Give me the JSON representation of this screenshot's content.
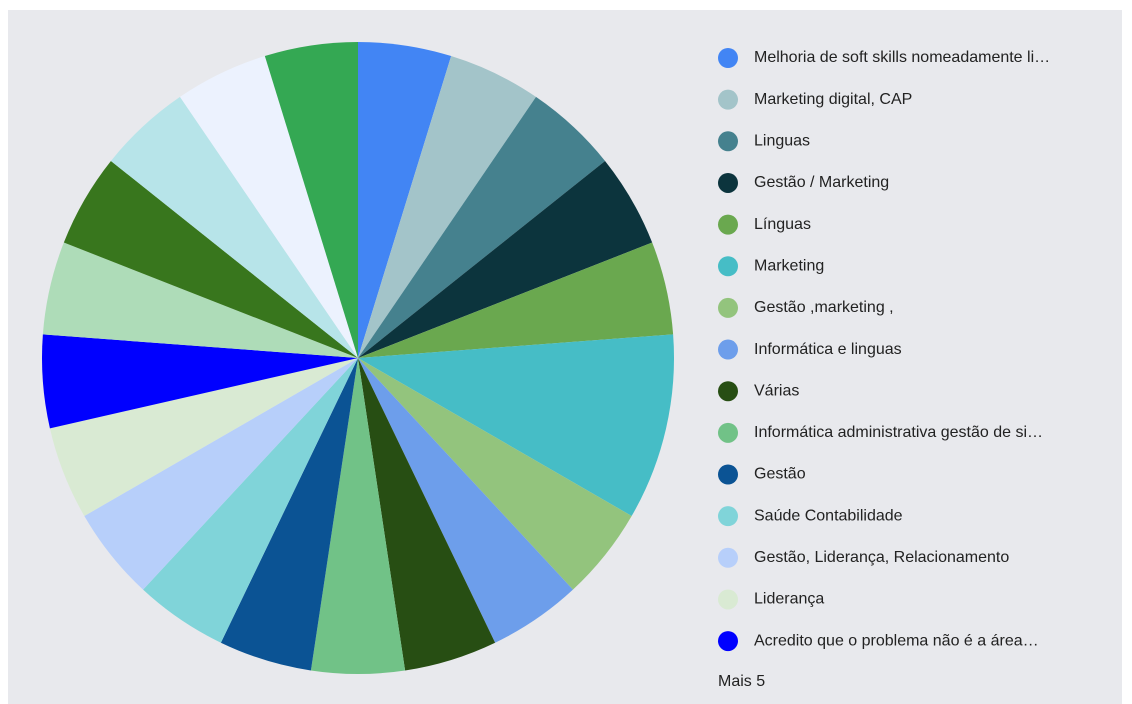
{
  "chart_data": {
    "type": "pie",
    "categories": [
      "Melhoria de soft skills nomeadamente li…",
      "Marketing digital, CAP",
      "Linguas",
      "Gestão / Marketing",
      "Línguas",
      "Marketing",
      "Gestão ,marketing ,",
      "Informática e linguas",
      "Várias",
      "Informática administrativa  gestão de si…",
      "Gestão",
      "Saúde Contabilidade",
      "Gestão, Liderança, Relacionamento",
      "Liderança",
      "Acredito que o problema não é a área…",
      null,
      null,
      null,
      null,
      null
    ],
    "values": [
      1,
      1,
      1,
      1,
      1,
      2,
      1,
      1,
      1,
      1,
      1,
      1,
      1,
      1,
      1,
      1,
      1,
      1,
      1,
      1
    ],
    "colors": [
      "#4285f4",
      "#a3c4c9",
      "#45818e",
      "#0c343d",
      "#6aa84f",
      "#46bdc6",
      "#93c47d",
      "#6d9eeb",
      "#274e13",
      "#71c287",
      "#0b5394",
      "#80d4d9",
      "#b7cffa",
      "#d9ead3",
      "#0000ff",
      "#aedcb8",
      "#38761d",
      "#b7e4e9",
      "#ecf2fe",
      "#34a853"
    ],
    "legend_more": "Mais 5"
  }
}
